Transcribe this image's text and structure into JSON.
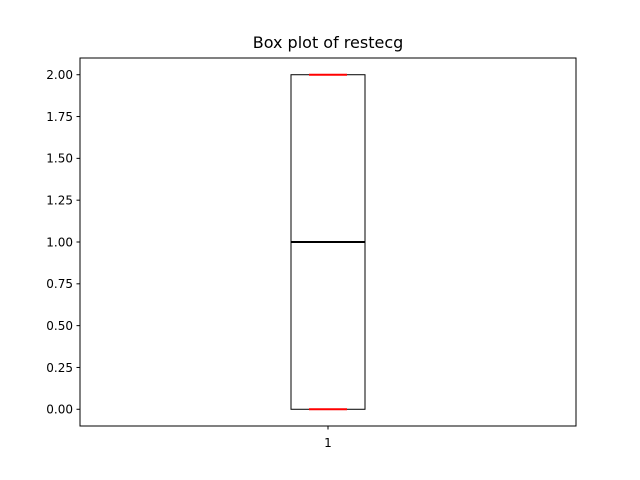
{
  "chart_data": {
    "type": "box",
    "title": "Box plot of restecg",
    "xlabel": "",
    "ylabel": "",
    "categories": [
      "1"
    ],
    "boxes": [
      {
        "category": "1",
        "whisker_low": 0.0,
        "q1": 0.0,
        "median": 1.0,
        "q3": 2.0,
        "whisker_high": 2.0
      }
    ],
    "ylim": [
      -0.1,
      2.1
    ],
    "yticks": [
      0.0,
      0.25,
      0.5,
      0.75,
      1.0,
      1.25,
      1.5,
      1.75,
      2.0
    ],
    "ytick_labels": [
      "0.00",
      "0.25",
      "0.50",
      "0.75",
      "1.00",
      "1.25",
      "1.50",
      "1.75",
      "2.00"
    ],
    "grid": false,
    "legend": "none",
    "colors": {
      "box": "#000000",
      "median": "#000000",
      "whisker_caps": "#ff0000"
    }
  }
}
